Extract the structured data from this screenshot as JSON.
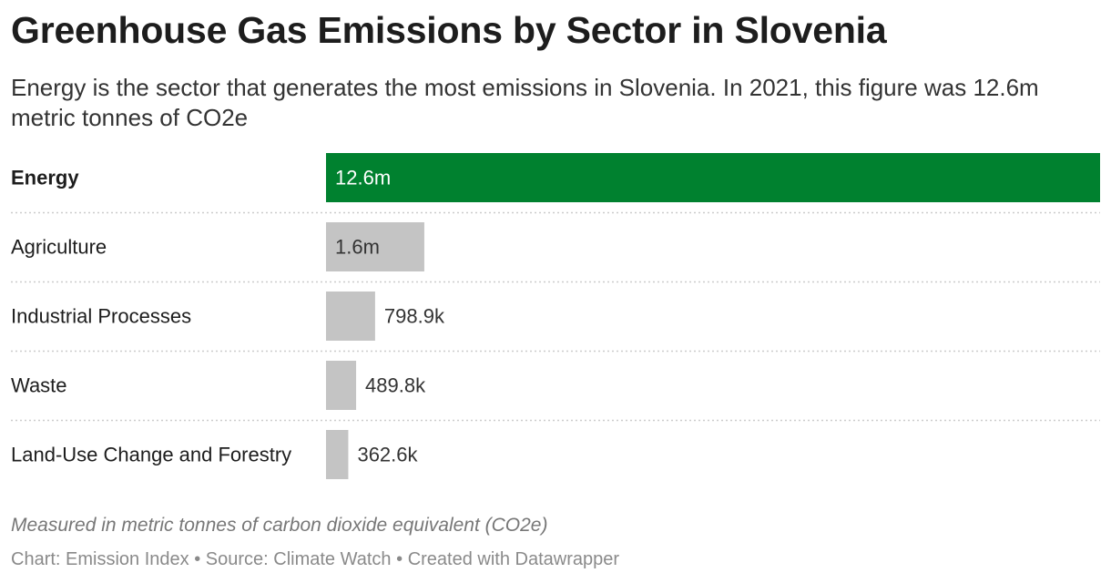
{
  "header": {
    "title": "Greenhouse Gas Emissions by Sector in Slovenia",
    "subtitle": "Energy is the sector that generates the most emissions in Slovenia. In 2021, this figure was 12.6m metric tonnes of CO2e"
  },
  "chart_data": {
    "type": "bar",
    "orientation": "horizontal",
    "categories": [
      "Energy",
      "Agriculture",
      "Industrial Processes",
      "Waste",
      "Land-Use Change and Forestry"
    ],
    "values": [
      12600000,
      1600000,
      798900,
      489800,
      362600
    ],
    "value_labels": [
      "12.6m",
      "1.6m",
      "798.9k",
      "489.8k",
      "362.6k"
    ],
    "highlight_category": "Energy",
    "colors": {
      "highlight": "#00812f",
      "default": "#c4c4c4",
      "label_on_highlight": "#ffffff",
      "label_on_default": "#333333",
      "gridline": "#cccccc"
    },
    "title": "Greenhouse Gas Emissions by Sector in Slovenia",
    "xlabel": "",
    "ylabel": "",
    "grid": false
  },
  "footer": {
    "note": "Measured in metric tonnes of carbon dioxide equivalent (CO2e)",
    "parts": [
      "Chart: Emission Index",
      "Source: Climate Watch",
      "Created with Datawrapper"
    ],
    "separator": "•"
  }
}
